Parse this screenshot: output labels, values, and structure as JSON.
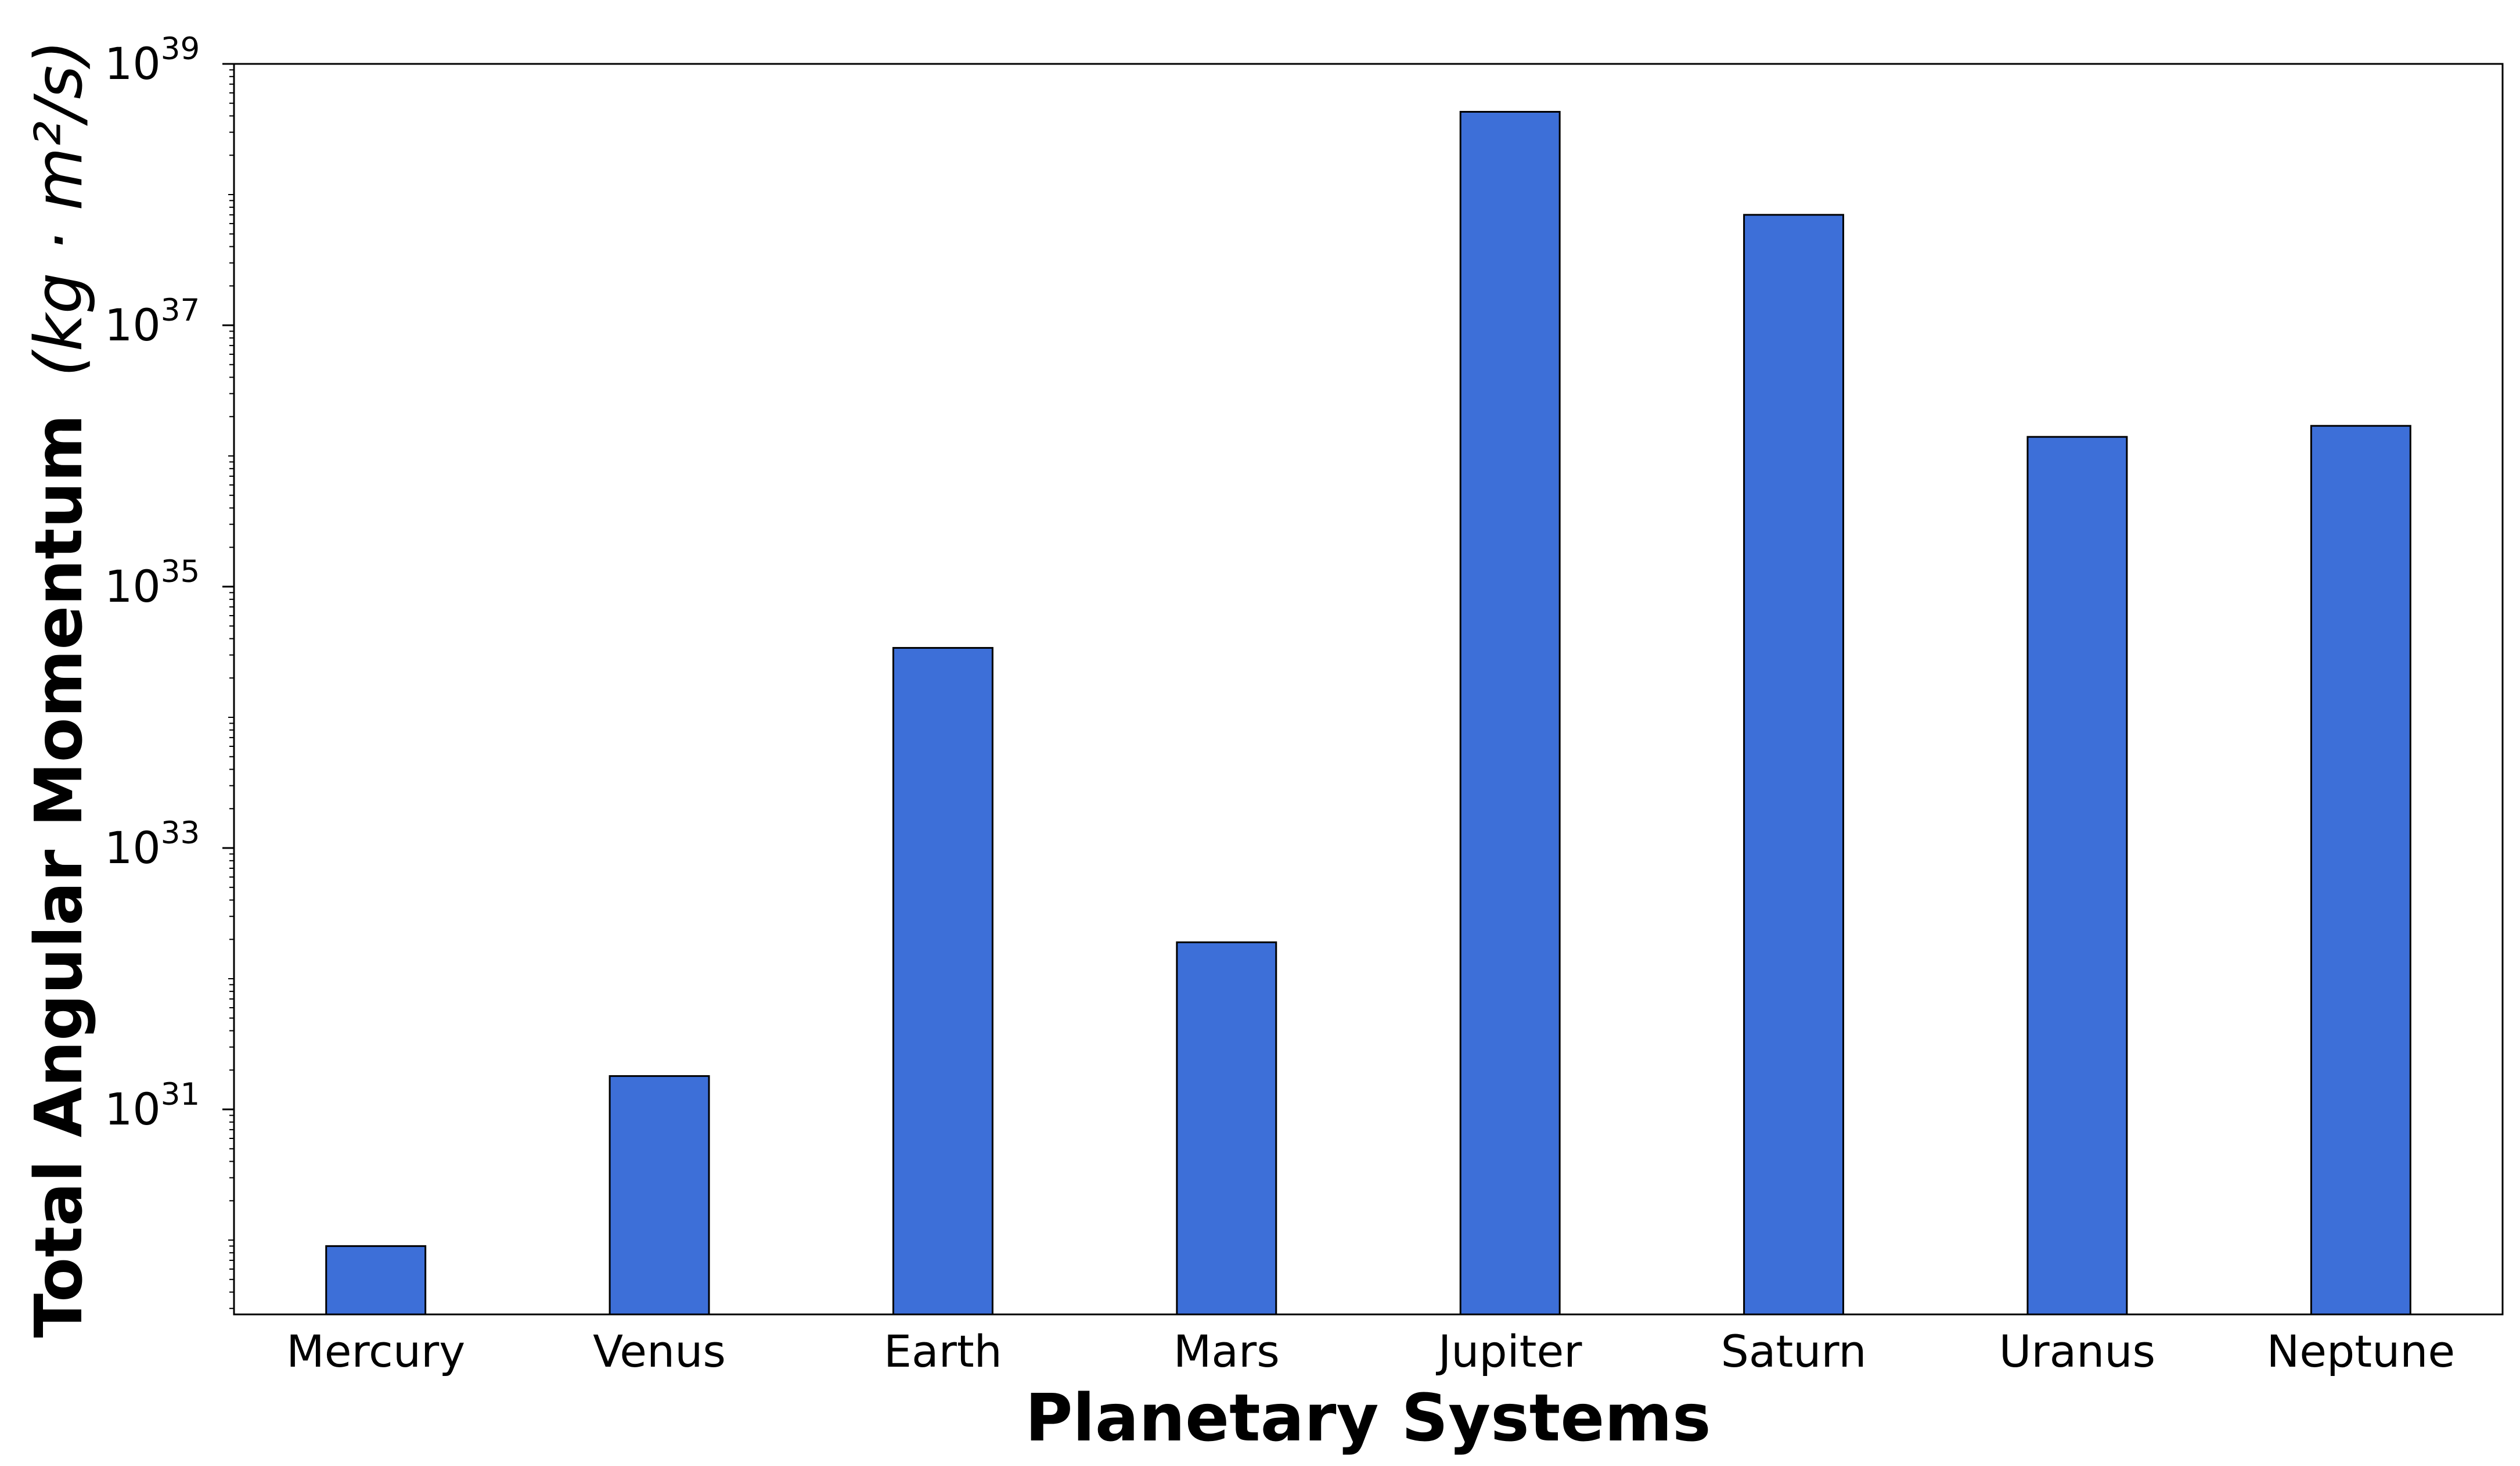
{
  "chart_data": {
    "type": "bar",
    "categories": [
      "Mercury",
      "Venus",
      "Earth",
      "Mars",
      "Jupiter",
      "Saturn",
      "Uranus",
      "Neptune"
    ],
    "values": [
      9e+29,
      1.8e+31,
      3.4e+34,
      1.9e+32,
      4.3e+38,
      7e+37,
      1.4e+36,
      1.7e+36
    ],
    "xlabel": "Planetary Systems",
    "ylabel": "Total Angular Momentum",
    "ylabel_unit": "(kg · m²/s)",
    "yscale": "log",
    "ylim": [
      2.7e+29,
      1e+39
    ],
    "yticks": [
      {
        "base": "10",
        "exp": "31",
        "value": 1e+31
      },
      {
        "base": "10",
        "exp": "33",
        "value": 1e+33
      },
      {
        "base": "10",
        "exp": "35",
        "value": 1e+35
      },
      {
        "base": "10",
        "exp": "37",
        "value": 1e+37
      },
      {
        "base": "10",
        "exp": "39",
        "value": 1e+39
      }
    ],
    "grid": false,
    "legend": "none",
    "bar_color": "#3d6fd8",
    "edge_color": "#000000"
  }
}
